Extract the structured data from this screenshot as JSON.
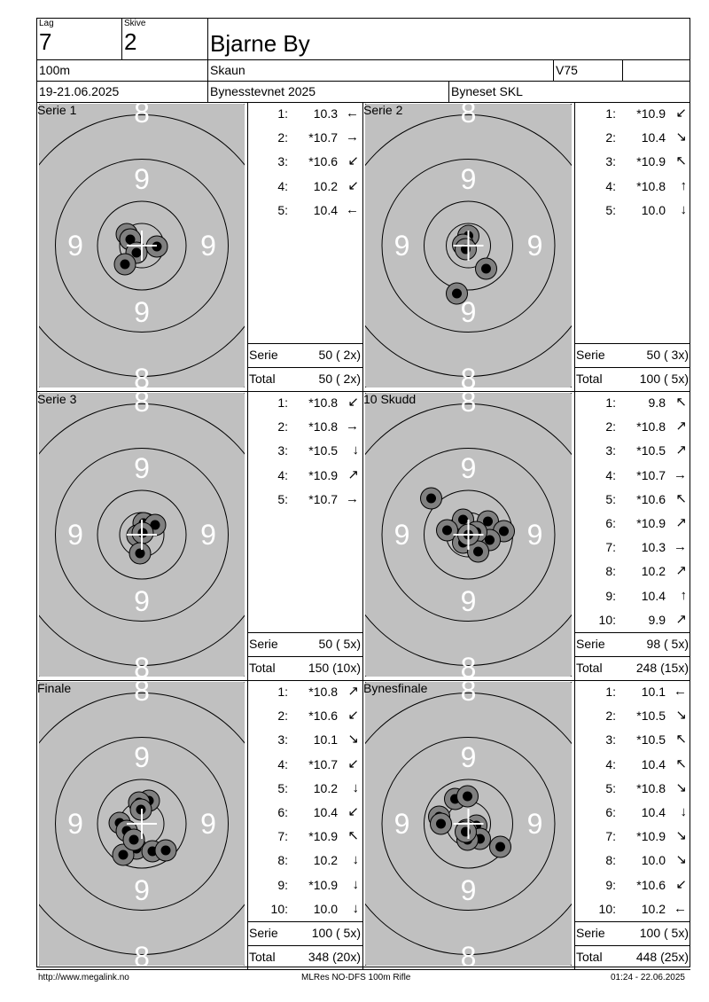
{
  "header": {
    "lag_label": "Lag",
    "lag_value": "7",
    "skive_label": "Skive",
    "skive_value": "2",
    "name": "Bjarne By",
    "distance": "100m",
    "club": "Skaun",
    "class": "V75",
    "date": "19-21.06.2025",
    "event": "Bynesstevnet 2025",
    "venue": "Byneset SKL"
  },
  "target_colors": {
    "background": "#c0c0c0",
    "ring": "#000000",
    "number": "#ffffff",
    "shot_outer": "#808080",
    "shot_inner": "#000000"
  },
  "ring_numbers": {
    "outer": "8",
    "inner": "9"
  },
  "panels": [
    {
      "title": "Serie 1",
      "shots": [
        {
          "n": "1:",
          "score": "10.3",
          "dir": "W"
        },
        {
          "n": "2:",
          "score": "*10.7",
          "dir": "E"
        },
        {
          "n": "3:",
          "score": "*10.6",
          "dir": "SW"
        },
        {
          "n": "4:",
          "score": "10.2",
          "dir": "SW"
        },
        {
          "n": "5:",
          "score": "10.4",
          "dir": "W"
        }
      ],
      "hits": [
        [
          -1.7,
          -1.3
        ],
        [
          -1.3,
          -0.7
        ],
        [
          -0.6,
          0.8
        ],
        [
          1.7,
          0.1
        ],
        [
          -1.9,
          2.1
        ]
      ],
      "serie_label": "Serie",
      "serie_value": "50 ( 2x)",
      "total_label": "Total",
      "total_value": "50 ( 2x)"
    },
    {
      "title": "Serie 2",
      "shots": [
        {
          "n": "1:",
          "score": "*10.9",
          "dir": "SW"
        },
        {
          "n": "2:",
          "score": "10.4",
          "dir": "SE"
        },
        {
          "n": "3:",
          "score": "*10.9",
          "dir": "NW"
        },
        {
          "n": "4:",
          "score": "*10.8",
          "dir": "N"
        },
        {
          "n": "5:",
          "score": "10.0",
          "dir": "S"
        }
      ],
      "hits": [
        [
          0,
          -1.1
        ],
        [
          -0.6,
          -0.1
        ],
        [
          -0.3,
          0.4
        ],
        [
          2.0,
          2.6
        ],
        [
          -1.3,
          5.4
        ]
      ],
      "serie_label": "Serie",
      "serie_value": "50 ( 3x)",
      "total_label": "Total",
      "total_value": "100 ( 5x)"
    },
    {
      "title": "Serie 3",
      "shots": [
        {
          "n": "1:",
          "score": "*10.8",
          "dir": "SW"
        },
        {
          "n": "2:",
          "score": "*10.8",
          "dir": "E"
        },
        {
          "n": "3:",
          "score": "*10.5",
          "dir": "S"
        },
        {
          "n": "4:",
          "score": "*10.9",
          "dir": "NE"
        },
        {
          "n": "5:",
          "score": "*10.7",
          "dir": "E"
        }
      ],
      "hits": [
        [
          0.2,
          -1.3
        ],
        [
          1.5,
          -1.1
        ],
        [
          -0.5,
          0.1
        ],
        [
          0.1,
          -0.2
        ],
        [
          -0.2,
          2.1
        ]
      ],
      "serie_label": "Serie",
      "serie_value": "50 ( 5x)",
      "total_label": "Total",
      "total_value": "150 (10x)"
    },
    {
      "title": "10 Skudd",
      "shots": [
        {
          "n": "1:",
          "score": "9.8",
          "dir": "NW"
        },
        {
          "n": "2:",
          "score": "*10.8",
          "dir": "NE"
        },
        {
          "n": "3:",
          "score": "*10.5",
          "dir": "NE"
        },
        {
          "n": "4:",
          "score": "*10.7",
          "dir": "E"
        },
        {
          "n": "5:",
          "score": "*10.6",
          "dir": "NW"
        },
        {
          "n": "6:",
          "score": "*10.9",
          "dir": "NE"
        },
        {
          "n": "7:",
          "score": "10.3",
          "dir": "E"
        },
        {
          "n": "8:",
          "score": "10.2",
          "dir": "NE"
        },
        {
          "n": "9:",
          "score": "10.4",
          "dir": "N"
        },
        {
          "n": "10:",
          "score": "9.9",
          "dir": "NE"
        }
      ],
      "hits": [
        [
          -4.2,
          -4.1
        ],
        [
          -0.6,
          -1.7
        ],
        [
          2.2,
          -1.5
        ],
        [
          -2.4,
          -0.5
        ],
        [
          4.0,
          -0.4
        ],
        [
          2.4,
          0.6
        ],
        [
          -0.6,
          0.9
        ],
        [
          0.9,
          -0.3
        ],
        [
          1.1,
          1.9
        ],
        [
          0.0,
          0.0
        ]
      ],
      "serie_label": "Serie",
      "serie_value": "98 ( 5x)",
      "total_label": "Total",
      "total_value": "248 (15x)"
    },
    {
      "title": "Finale",
      "shots": [
        {
          "n": "1:",
          "score": "*10.8",
          "dir": "NE"
        },
        {
          "n": "2:",
          "score": "*10.6",
          "dir": "SW"
        },
        {
          "n": "3:",
          "score": "10.1",
          "dir": "SE"
        },
        {
          "n": "4:",
          "score": "*10.7",
          "dir": "SW"
        },
        {
          "n": "5:",
          "score": "10.2",
          "dir": "S"
        },
        {
          "n": "6:",
          "score": "10.4",
          "dir": "SW"
        },
        {
          "n": "7:",
          "score": "*10.9",
          "dir": "NW"
        },
        {
          "n": "8:",
          "score": "10.2",
          "dir": "S"
        },
        {
          "n": "9:",
          "score": "*10.9",
          "dir": "S"
        },
        {
          "n": "10:",
          "score": "10.0",
          "dir": "S"
        }
      ],
      "hits": [
        [
          0.8,
          -2.6
        ],
        [
          -0.3,
          -2.4
        ],
        [
          -0.1,
          -1.6
        ],
        [
          -2.5,
          -0.1
        ],
        [
          -1.7,
          0.8
        ],
        [
          -0.6,
          2.8
        ],
        [
          1.2,
          3.1
        ],
        [
          2.7,
          3.0
        ],
        [
          -2.1,
          3.5
        ],
        [
          -0.9,
          1.8
        ]
      ],
      "serie_label": "Serie",
      "serie_value": "100 ( 5x)",
      "total_label": "Total",
      "total_value": "348 (20x)"
    },
    {
      "title": "Bynesfinale",
      "shots": [
        {
          "n": "1:",
          "score": "10.1",
          "dir": "W"
        },
        {
          "n": "2:",
          "score": "*10.5",
          "dir": "SE"
        },
        {
          "n": "3:",
          "score": "*10.5",
          "dir": "NW"
        },
        {
          "n": "4:",
          "score": "10.4",
          "dir": "NW"
        },
        {
          "n": "5:",
          "score": "*10.8",
          "dir": "SE"
        },
        {
          "n": "6:",
          "score": "10.4",
          "dir": "S"
        },
        {
          "n": "7:",
          "score": "*10.9",
          "dir": "SE"
        },
        {
          "n": "8:",
          "score": "10.0",
          "dir": "SE"
        },
        {
          "n": "9:",
          "score": "*10.6",
          "dir": "SW"
        },
        {
          "n": "10:",
          "score": "10.2",
          "dir": "W"
        }
      ],
      "hits": [
        [
          -1.5,
          -2.8
        ],
        [
          -0.1,
          -3.1
        ],
        [
          -3.3,
          -0.8
        ],
        [
          -3.1,
          0.0
        ],
        [
          0.9,
          0.2
        ],
        [
          -0.2,
          0.7
        ],
        [
          1.3,
          1.7
        ],
        [
          -0.1,
          1.8
        ],
        [
          3.6,
          2.6
        ],
        [
          -0.3,
          0.9
        ]
      ],
      "serie_label": "Serie",
      "serie_value": "100 ( 5x)",
      "total_label": "Total",
      "total_value": "448 (25x)"
    }
  ],
  "footer": {
    "url": "http://www.megalink.no",
    "program": "MLRes NO-DFS 100m Rifle",
    "timestamp": "01:24 - 22.06.2025"
  }
}
